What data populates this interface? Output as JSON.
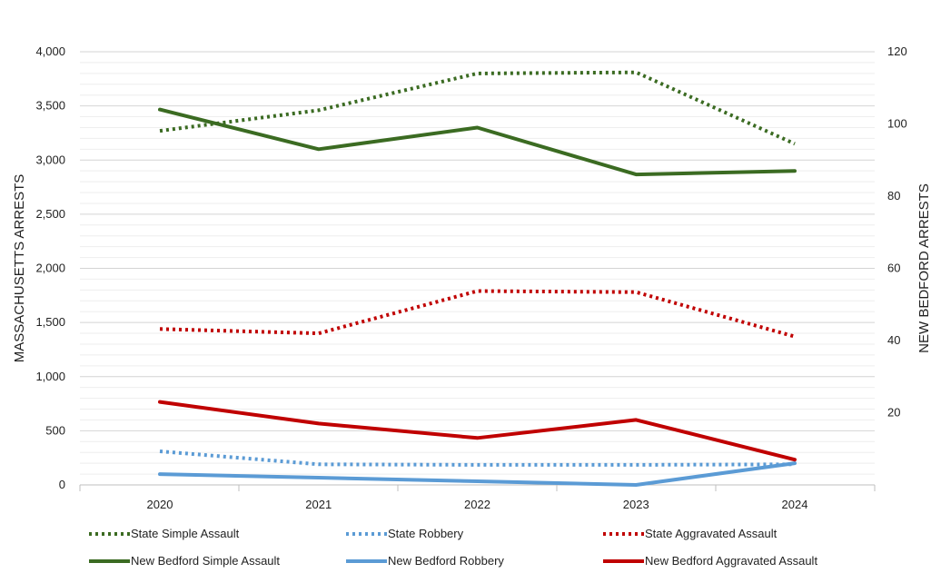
{
  "chart_data": {
    "type": "line",
    "title": "",
    "categories": [
      "2020",
      "2021",
      "2022",
      "2023",
      "2024"
    ],
    "ylabel_left": "MASSACHUSETTS ARRESTS",
    "ylabel_right": "NEW BEDFORD ARRESTS",
    "ylim_left": [
      0,
      4000
    ],
    "ylim_right": [
      0,
      120
    ],
    "yticks_left": [
      "0",
      "500",
      "1,000",
      "1,500",
      "2,000",
      "2,500",
      "3,000",
      "3,500",
      "4,000"
    ],
    "yticks_right": [
      "20",
      "40",
      "60",
      "80",
      "100",
      "120"
    ],
    "grid": true,
    "legend_position": "bottom",
    "series": [
      {
        "name": "State Simple Assault",
        "axis": "left",
        "style": "dotted",
        "color": "#3B6B22",
        "values": [
          3270,
          3460,
          3800,
          3810,
          3150
        ]
      },
      {
        "name": "State Robbery",
        "axis": "left",
        "style": "dotted",
        "color": "#5B9BD5",
        "values": [
          310,
          190,
          185,
          185,
          190
        ]
      },
      {
        "name": "State Aggravated Assault",
        "axis": "left",
        "style": "dotted",
        "color": "#C00000",
        "values": [
          1440,
          1400,
          1790,
          1780,
          1370
        ]
      },
      {
        "name": "New Bedford Simple Assault",
        "axis": "right",
        "style": "solid",
        "color": "#3B6B22",
        "values": [
          104,
          93,
          99,
          86,
          87
        ]
      },
      {
        "name": "New Bedford Robbery",
        "axis": "right",
        "style": "solid",
        "color": "#5B9BD5",
        "values": [
          3,
          2,
          1,
          0,
          6
        ]
      },
      {
        "name": "New Bedford Aggravated Assault",
        "axis": "right",
        "style": "solid",
        "color": "#C00000",
        "values": [
          23,
          17,
          13,
          18,
          7
        ]
      }
    ]
  }
}
